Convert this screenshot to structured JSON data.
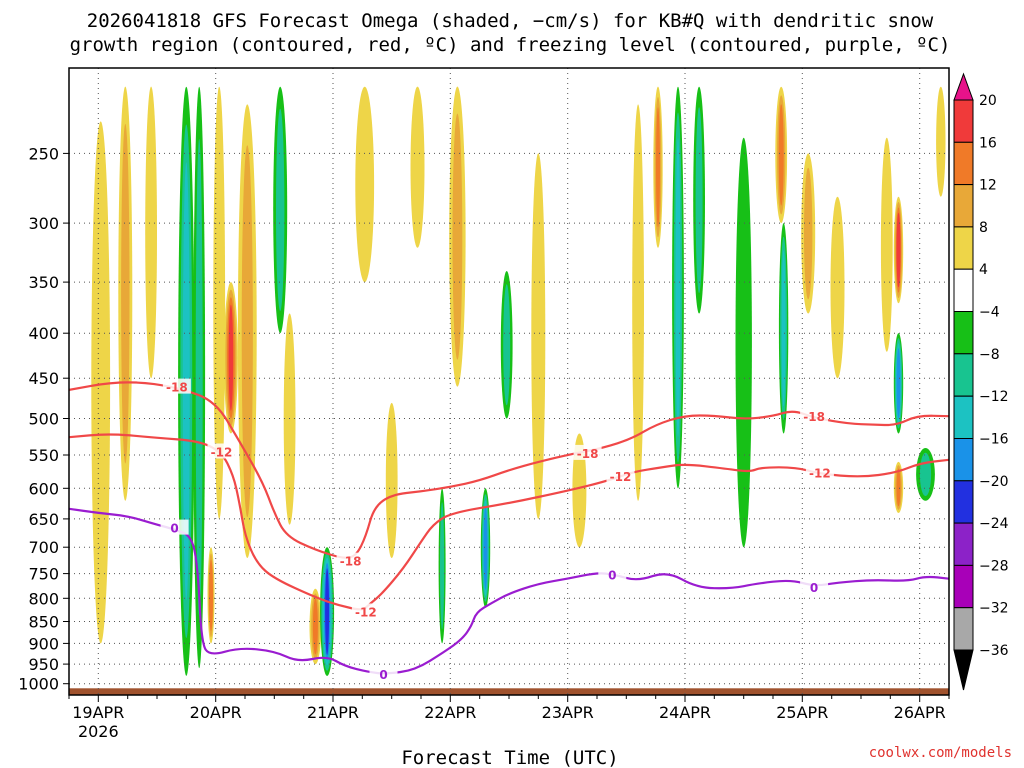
{
  "title": {
    "line1": "2026041818 GFS Forecast Omega (shaded, −cm/s) for KB#Q with dendritic snow",
    "line2": "growth region (contoured, red, ºC) and freezing level (contoured, purple, ºC)"
  },
  "xlabel": "Forecast Time (UTC)",
  "credit": "coolwx.com/models",
  "chart_data": {
    "type": "heatmap",
    "x_axis": {
      "ticks": [
        {
          "day": 0,
          "label": "19APR",
          "sublabel": "2026"
        },
        {
          "day": 1,
          "label": "20APR"
        },
        {
          "day": 2,
          "label": "21APR"
        },
        {
          "day": 3,
          "label": "22APR"
        },
        {
          "day": 4,
          "label": "23APR"
        },
        {
          "day": 5,
          "label": "24APR"
        },
        {
          "day": 6,
          "label": "25APR"
        },
        {
          "day": 7,
          "label": "26APR"
        }
      ],
      "range_days": [
        -0.25,
        7.25
      ]
    },
    "y_axis": {
      "scale": "log-pressure",
      "ticks": [
        250,
        300,
        350,
        400,
        450,
        500,
        550,
        600,
        650,
        700,
        750,
        800,
        850,
        900,
        950,
        1000
      ],
      "range": [
        200,
        1030
      ]
    },
    "colorbar": {
      "levels": [
        "20",
        "16",
        "12",
        "8",
        "4",
        "−4",
        "−8",
        "−12",
        "−16",
        "−20",
        "−24",
        "−28",
        "−32",
        "−36"
      ],
      "colors": [
        "#e8128a",
        "#f03a3a",
        "#f07a28",
        "#e8a838",
        "#eed548",
        "#ffffff",
        "#17c017",
        "#18c490",
        "#1cc2c2",
        "#1a92e8",
        "#2230e0",
        "#8c22c8",
        "#a800b8",
        "#a8a8a8",
        "#000000"
      ]
    },
    "omega_bands": [
      {
        "t": 0.02,
        "p0": 230,
        "p1": 900,
        "w": 0.08,
        "v": 5
      },
      {
        "t": 0.23,
        "p0": 210,
        "p1": 620,
        "w": 0.06,
        "v": 9
      },
      {
        "t": 0.45,
        "p0": 210,
        "p1": 450,
        "w": 0.05,
        "v": 7
      },
      {
        "t": 0.75,
        "p0": 210,
        "p1": 980,
        "w": 0.07,
        "v": -14
      },
      {
        "t": 0.86,
        "p0": 210,
        "p1": 960,
        "w": 0.05,
        "v": -8
      },
      {
        "t": 0.96,
        "p0": 700,
        "p1": 900,
        "w": 0.03,
        "v": 12
      },
      {
        "t": 1.03,
        "p0": 210,
        "p1": 650,
        "w": 0.05,
        "v": 7
      },
      {
        "t": 1.13,
        "p0": 350,
        "p1": 520,
        "w": 0.06,
        "v": 16
      },
      {
        "t": 1.27,
        "p0": 220,
        "p1": 720,
        "w": 0.08,
        "v": 11
      },
      {
        "t": 1.55,
        "p0": 210,
        "p1": 400,
        "w": 0.06,
        "v": -10
      },
      {
        "t": 1.63,
        "p0": 380,
        "p1": 660,
        "w": 0.05,
        "v": 6
      },
      {
        "t": 1.85,
        "p0": 780,
        "p1": 950,
        "w": 0.05,
        "v": 12
      },
      {
        "t": 1.95,
        "p0": 700,
        "p1": 980,
        "w": 0.06,
        "v": -22
      },
      {
        "t": 2.27,
        "p0": 210,
        "p1": 350,
        "w": 0.08,
        "v": 5
      },
      {
        "t": 2.5,
        "p0": 480,
        "p1": 720,
        "w": 0.05,
        "v": 5
      },
      {
        "t": 2.72,
        "p0": 210,
        "p1": 320,
        "w": 0.06,
        "v": 6
      },
      {
        "t": 2.93,
        "p0": 600,
        "p1": 900,
        "w": 0.03,
        "v": -8
      },
      {
        "t": 3.06,
        "p0": 210,
        "p1": 460,
        "w": 0.07,
        "v": 8
      },
      {
        "t": 3.3,
        "p0": 600,
        "p1": 820,
        "w": 0.04,
        "v": -16
      },
      {
        "t": 3.48,
        "p0": 340,
        "p1": 500,
        "w": 0.05,
        "v": -8
      },
      {
        "t": 3.75,
        "p0": 250,
        "p1": 650,
        "w": 0.06,
        "v": 5
      },
      {
        "t": 4.1,
        "p0": 520,
        "p1": 700,
        "w": 0.06,
        "v": 6
      },
      {
        "t": 4.6,
        "p0": 220,
        "p1": 620,
        "w": 0.05,
        "v": 6
      },
      {
        "t": 4.77,
        "p0": 210,
        "p1": 320,
        "w": 0.04,
        "v": 13
      },
      {
        "t": 4.94,
        "p0": 210,
        "p1": 600,
        "w": 0.05,
        "v": -14
      },
      {
        "t": 5.12,
        "p0": 210,
        "p1": 380,
        "w": 0.05,
        "v": -9
      },
      {
        "t": 5.5,
        "p0": 240,
        "p1": 700,
        "w": 0.07,
        "v": -6
      },
      {
        "t": 5.82,
        "p0": 210,
        "p1": 300,
        "w": 0.05,
        "v": 12
      },
      {
        "t": 5.84,
        "p0": 300,
        "p1": 520,
        "w": 0.04,
        "v": -14
      },
      {
        "t": 6.05,
        "p0": 250,
        "p1": 380,
        "w": 0.06,
        "v": 10
      },
      {
        "t": 6.3,
        "p0": 280,
        "p1": 450,
        "w": 0.06,
        "v": 6
      },
      {
        "t": 6.72,
        "p0": 240,
        "p1": 420,
        "w": 0.05,
        "v": 6
      },
      {
        "t": 6.82,
        "p0": 280,
        "p1": 370,
        "w": 0.04,
        "v": 18
      },
      {
        "t": 6.82,
        "p0": 400,
        "p1": 520,
        "w": 0.04,
        "v": -18
      },
      {
        "t": 6.82,
        "p0": 560,
        "p1": 640,
        "w": 0.04,
        "v": 14
      },
      {
        "t": 7.05,
        "p0": 540,
        "p1": 620,
        "w": 0.08,
        "v": -9
      },
      {
        "t": 7.18,
        "p0": 210,
        "p1": 280,
        "w": 0.04,
        "v": 6
      }
    ],
    "terrain": {
      "p0": 1012,
      "color": "#a0522d"
    },
    "contours": [
      {
        "label": "-18",
        "color": "#f04848",
        "label_at": [
          [
            0.67,
            460
          ],
          [
            2.15,
            725
          ],
          [
            4.17,
            547
          ],
          [
            6.1,
            497
          ]
        ],
        "points": [
          [
            -0.25,
            464
          ],
          [
            0.1,
            455
          ],
          [
            0.4,
            455
          ],
          [
            0.7,
            462
          ],
          [
            1.0,
            478
          ],
          [
            1.2,
            530
          ],
          [
            1.4,
            590
          ],
          [
            1.5,
            640
          ],
          [
            1.6,
            680
          ],
          [
            1.85,
            705
          ],
          [
            2.1,
            722
          ],
          [
            2.2,
            715
          ],
          [
            2.28,
            680
          ],
          [
            2.35,
            630
          ],
          [
            2.5,
            610
          ],
          [
            2.75,
            605
          ],
          [
            3.0,
            598
          ],
          [
            3.25,
            588
          ],
          [
            3.5,
            572
          ],
          [
            3.75,
            560
          ],
          [
            4.05,
            548
          ],
          [
            4.3,
            540
          ],
          [
            4.55,
            527
          ],
          [
            4.75,
            508
          ],
          [
            5.0,
            496
          ],
          [
            5.25,
            496
          ],
          [
            5.5,
            501
          ],
          [
            5.75,
            497
          ],
          [
            5.92,
            489
          ],
          [
            6.1,
            499
          ],
          [
            6.4,
            507
          ],
          [
            6.6,
            508
          ],
          [
            6.8,
            509
          ],
          [
            6.98,
            496
          ],
          [
            7.25,
            497
          ]
        ]
      },
      {
        "label": "-12",
        "color": "#f04848",
        "label_at": [
          [
            1.05,
            545
          ],
          [
            2.28,
            828
          ],
          [
            4.45,
            581
          ],
          [
            6.15,
            576
          ]
        ],
        "points": [
          [
            -0.25,
            525
          ],
          [
            0.1,
            520
          ],
          [
            0.5,
            526
          ],
          [
            0.85,
            530
          ],
          [
            1.05,
            545
          ],
          [
            1.15,
            580
          ],
          [
            1.2,
            620
          ],
          [
            1.25,
            680
          ],
          [
            1.35,
            730
          ],
          [
            1.5,
            760
          ],
          [
            1.85,
            798
          ],
          [
            2.05,
            815
          ],
          [
            2.25,
            826
          ],
          [
            2.3,
            815
          ],
          [
            2.42,
            790
          ],
          [
            2.6,
            740
          ],
          [
            2.75,
            690
          ],
          [
            2.85,
            660
          ],
          [
            3.0,
            640
          ],
          [
            3.5,
            624
          ],
          [
            4.0,
            604
          ],
          [
            4.35,
            588
          ],
          [
            4.55,
            575
          ],
          [
            4.8,
            568
          ],
          [
            5.0,
            563
          ],
          [
            5.35,
            570
          ],
          [
            5.55,
            575
          ],
          [
            5.65,
            568
          ],
          [
            5.95,
            568
          ],
          [
            6.15,
            578
          ],
          [
            6.5,
            583
          ],
          [
            6.8,
            576
          ],
          [
            7.0,
            562
          ],
          [
            7.25,
            557
          ]
        ]
      },
      {
        "label": "0",
        "color": "#9a1cd0",
        "label_at": [
          [
            0.65,
            665
          ],
          [
            2.43,
            975
          ],
          [
            4.38,
            752
          ],
          [
            6.1,
            777
          ]
        ],
        "points": [
          [
            -0.25,
            633
          ],
          [
            0.0,
            640
          ],
          [
            0.25,
            645
          ],
          [
            0.5,
            660
          ],
          [
            0.65,
            668
          ],
          [
            0.8,
            680
          ],
          [
            0.85,
            745
          ],
          [
            0.88,
            900
          ],
          [
            0.95,
            930
          ],
          [
            1.2,
            910
          ],
          [
            1.5,
            918
          ],
          [
            1.7,
            945
          ],
          [
            1.95,
            930
          ],
          [
            2.1,
            955
          ],
          [
            2.3,
            970
          ],
          [
            2.45,
            975
          ],
          [
            2.7,
            965
          ],
          [
            2.95,
            920
          ],
          [
            3.1,
            890
          ],
          [
            3.18,
            860
          ],
          [
            3.22,
            830
          ],
          [
            3.35,
            810
          ],
          [
            3.5,
            790
          ],
          [
            3.75,
            770
          ],
          [
            4.0,
            760
          ],
          [
            4.25,
            748
          ],
          [
            4.4,
            752
          ],
          [
            4.6,
            765
          ],
          [
            4.85,
            745
          ],
          [
            5.1,
            778
          ],
          [
            5.4,
            780
          ],
          [
            5.6,
            770
          ],
          [
            5.9,
            762
          ],
          [
            6.1,
            775
          ],
          [
            6.3,
            768
          ],
          [
            6.6,
            762
          ],
          [
            6.9,
            765
          ],
          [
            7.05,
            755
          ],
          [
            7.25,
            760
          ]
        ]
      }
    ]
  }
}
